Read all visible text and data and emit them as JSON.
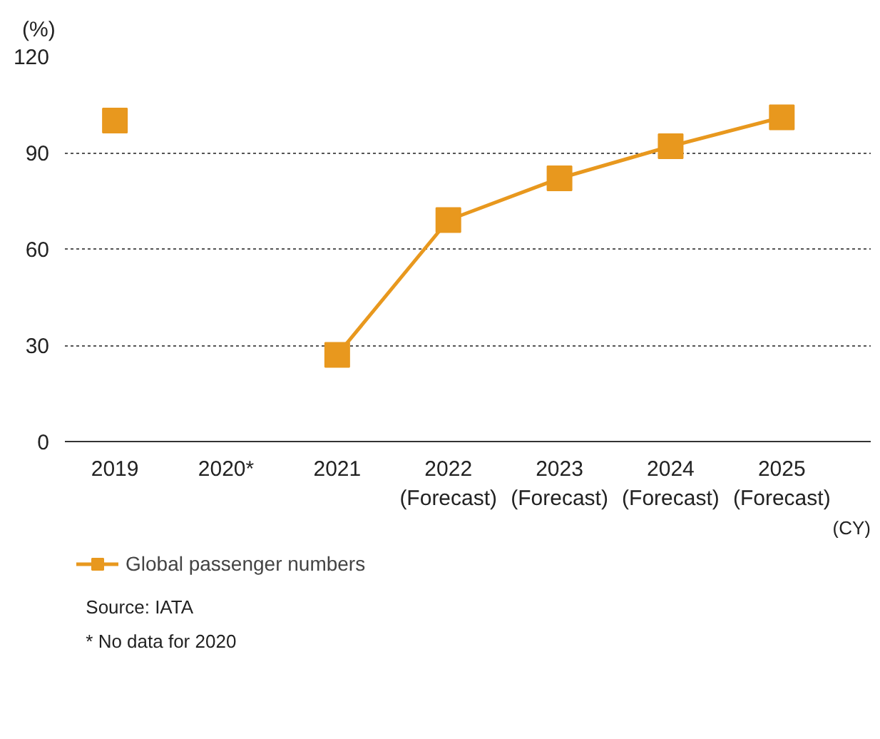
{
  "chart_data": {
    "type": "line",
    "ylabel": "(%)",
    "xlabel": "(CY)",
    "categories": [
      "2019",
      "2020*",
      "2021",
      "2022\n(Forecast)",
      "2023\n(Forecast)",
      "2024\n(Forecast)",
      "2025\n(Forecast)"
    ],
    "series": [
      {
        "name": "Global passenger numbers",
        "color": "#e8981e",
        "values": [
          100,
          null,
          27,
          69,
          82,
          92,
          101
        ]
      }
    ],
    "ylim": [
      0,
      120
    ],
    "yticks": [
      0,
      30,
      60,
      90,
      120
    ],
    "grid": "y",
    "legend": "bottom",
    "marker": "square",
    "line_style": "solid",
    "annotations": [
      "Source: IATA",
      "* No data for 2020"
    ]
  }
}
